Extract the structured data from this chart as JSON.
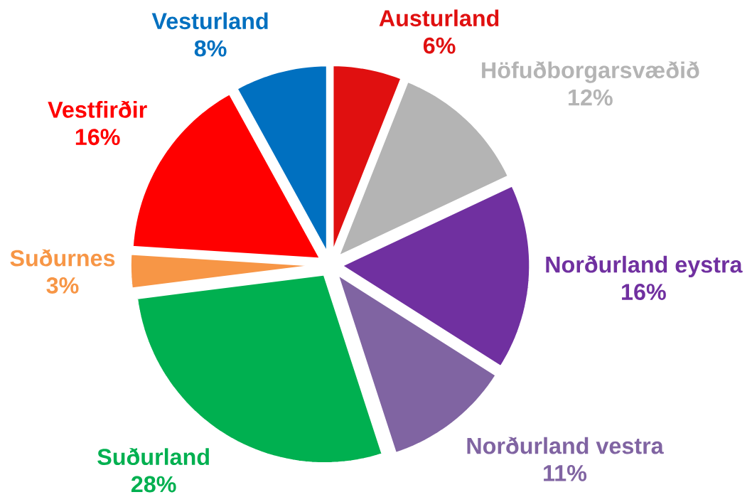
{
  "chart_data": {
    "type": "pie",
    "categories": [
      "Austurland",
      "Höfuðborgarsvæðið",
      "Norðurland eystra",
      "Norðurland vestra",
      "Suðurland",
      "Suðurnes",
      "Vestfirðir",
      "Vesturland"
    ],
    "values": [
      6,
      12,
      16,
      11,
      28,
      3,
      16,
      8
    ],
    "colors": [
      "#e01010",
      "#b4b4b4",
      "#7030a0",
      "#8064a2",
      "#00b050",
      "#f79646",
      "#ff0000",
      "#0070c0"
    ],
    "value_labels": [
      "6%",
      "12%",
      "16%",
      "11%",
      "28%",
      "3%",
      "16%",
      "8%"
    ]
  }
}
